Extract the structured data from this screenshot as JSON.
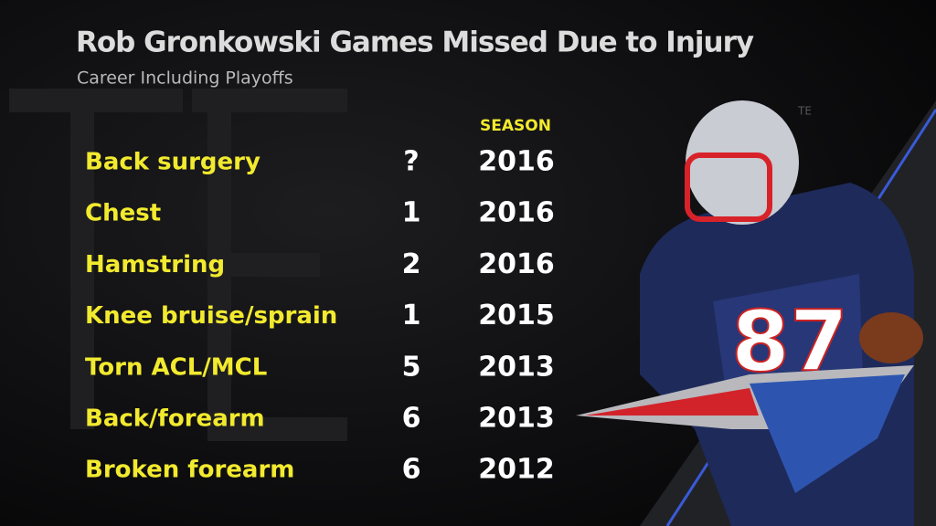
{
  "header": {
    "title": "Rob Gronkowski Games Missed Due to Injury",
    "subtitle": "Career Including Playoffs"
  },
  "table": {
    "columns": [
      "SEASON"
    ],
    "rows": [
      [
        "Back surgery",
        "?",
        2016
      ],
      [
        "Chest",
        1,
        2016
      ],
      [
        "Hamstring",
        2,
        2016
      ],
      [
        "Knee bruise/sprain",
        1,
        2015
      ],
      [
        "Torn ACL/MCL",
        5,
        2013
      ],
      [
        "Back/forearm",
        6,
        2013
      ],
      [
        "Broken forearm",
        6,
        2012
      ]
    ]
  },
  "background": {
    "label": "TE"
  }
}
